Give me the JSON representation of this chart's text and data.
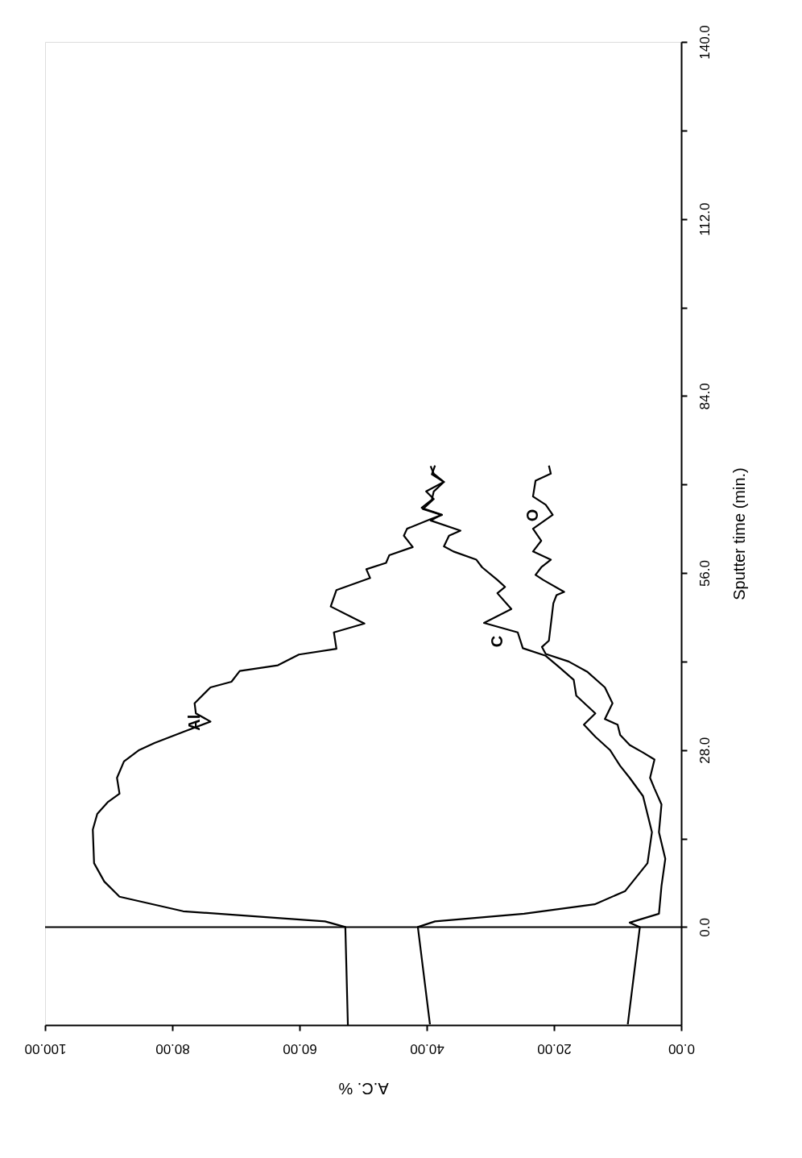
{
  "chart_data": {
    "type": "line",
    "xlabel": "A.C. %",
    "ylabel": "Sputter time (min.)",
    "xlim": [
      100,
      0
    ],
    "ylim": [
      -15.5,
      140
    ],
    "xticks": [
      {
        "value": 0,
        "label": "0.00"
      },
      {
        "value": 20,
        "label": "20.00"
      },
      {
        "value": 40,
        "label": "40.00"
      },
      {
        "value": 60,
        "label": "60.00"
      },
      {
        "value": 80,
        "label": "80.00"
      },
      {
        "value": 100,
        "label": "100.00"
      }
    ],
    "yticks": [
      {
        "value": 0,
        "label": "0.0"
      },
      {
        "value": 14,
        "label": null
      },
      {
        "value": 28,
        "label": "28.0"
      },
      {
        "value": 42,
        "label": null
      },
      {
        "value": 56,
        "label": "56.0"
      },
      {
        "value": 70,
        "label": null
      },
      {
        "value": 84,
        "label": "84.0"
      },
      {
        "value": 98,
        "label": null
      },
      {
        "value": 112,
        "label": "112.0"
      },
      {
        "value": 126,
        "label": null
      },
      {
        "value": 140,
        "label": "140.0"
      }
    ],
    "grid": false,
    "legend": false,
    "marker": "none",
    "line_style": "solid",
    "ref_lines": [
      {
        "axis": "y",
        "value": 0,
        "color": "#000000"
      }
    ],
    "series": [
      {
        "name": "Al",
        "color": "#000000",
        "values": [
          -15.5,
          0,
          0.9,
          2.5,
          4.8,
          7.2,
          10.1,
          15.4,
          17.9,
          19.8,
          21.1,
          23.6,
          26.2,
          28.0,
          29.1,
          30.9,
          32.5,
          33.8,
          35.4,
          37.9,
          38.8,
          40.5,
          41.4,
          43.1,
          44.0,
          46.6,
          48.0,
          50.7,
          53.3,
          55.2,
          56.6,
          57.6,
          58.8,
          60.1,
          61.9,
          63.0,
          64.5,
          65.2,
          66.3,
          67.6,
          68.9,
          70.4,
          71.6,
          73.0
        ],
        "x": [
          52.4,
          52.8,
          56.0,
          78.3,
          88.3,
          90.7,
          92.3,
          92.5,
          91.8,
          90.1,
          88.3,
          88.7,
          87.6,
          85.2,
          82.8,
          78.2,
          74.0,
          76.3,
          76.5,
          74.0,
          70.7,
          69.4,
          63.4,
          60.1,
          54.2,
          54.6,
          49.8,
          55.1,
          54.2,
          48.9,
          49.5,
          46.4,
          45.9,
          42.2,
          43.6,
          43.1,
          39.4,
          37.6,
          40.8,
          39.2,
          38.9,
          37.3,
          39.2,
          38.7
        ]
      },
      {
        "name": "C",
        "color": "#000000",
        "values": [
          -15.4,
          0,
          0.9,
          2.1,
          3.6,
          5.7,
          10.1,
          15.0,
          20.7,
          23.6,
          25.5,
          28.0,
          30.1,
          32.0,
          33.8,
          36.6,
          39.1,
          41.2,
          42.9,
          44.1,
          46.6,
          48.1,
          50.3,
          52.8,
          53.8,
          54.9,
          56.9,
          58.1,
          59.4,
          60.2,
          61.9,
          62.7,
          64.3,
          65.2,
          66.1,
          67.7,
          68.9,
          70.4,
          71.7,
          72.9
        ],
        "x": [
          39.5,
          41.4,
          38.7,
          24.7,
          13.6,
          8.8,
          5.3,
          4.6,
          6.0,
          8.1,
          9.6,
          11.2,
          13.5,
          15.3,
          13.5,
          16.5,
          16.9,
          19.3,
          21.3,
          24.9,
          25.7,
          31.0,
          26.7,
          28.9,
          27.7,
          28.9,
          31.3,
          32.2,
          35.8,
          37.3,
          36.5,
          34.7,
          39.4,
          37.7,
          40.6,
          38.9,
          40.1,
          37.3,
          38.9,
          39.4
        ]
      },
      {
        "name": "O",
        "color": "#000000",
        "values": [
          -15.4,
          0,
          0.7,
          2.1,
          6.5,
          10.8,
          15.0,
          19.4,
          21.9,
          23.6,
          26.5,
          27.6,
          28.8,
          30.4,
          32.0,
          32.9,
          35.4,
          37.9,
          40.4,
          42.0,
          43.2,
          44.3,
          45.3,
          51.2,
          52.5,
          53.0,
          54.9,
          55.7,
          56.9,
          58.1,
          59.4,
          61.1,
          63.0,
          65.2,
          66.8,
          68.1,
          70.6,
          71.7,
          73.0
        ],
        "x": [
          8.4,
          6.5,
          8.1,
          3.5,
          3.1,
          2.5,
          3.5,
          3.1,
          4.2,
          4.9,
          4.2,
          6.0,
          8.1,
          9.6,
          10.0,
          12.0,
          10.8,
          12.0,
          14.8,
          17.7,
          21.3,
          21.9,
          20.8,
          20.1,
          19.6,
          18.4,
          21.7,
          22.9,
          22.0,
          20.5,
          23.3,
          22.0,
          23.3,
          20.2,
          21.3,
          23.3,
          22.9,
          20.5,
          20.8
        ]
      }
    ]
  }
}
